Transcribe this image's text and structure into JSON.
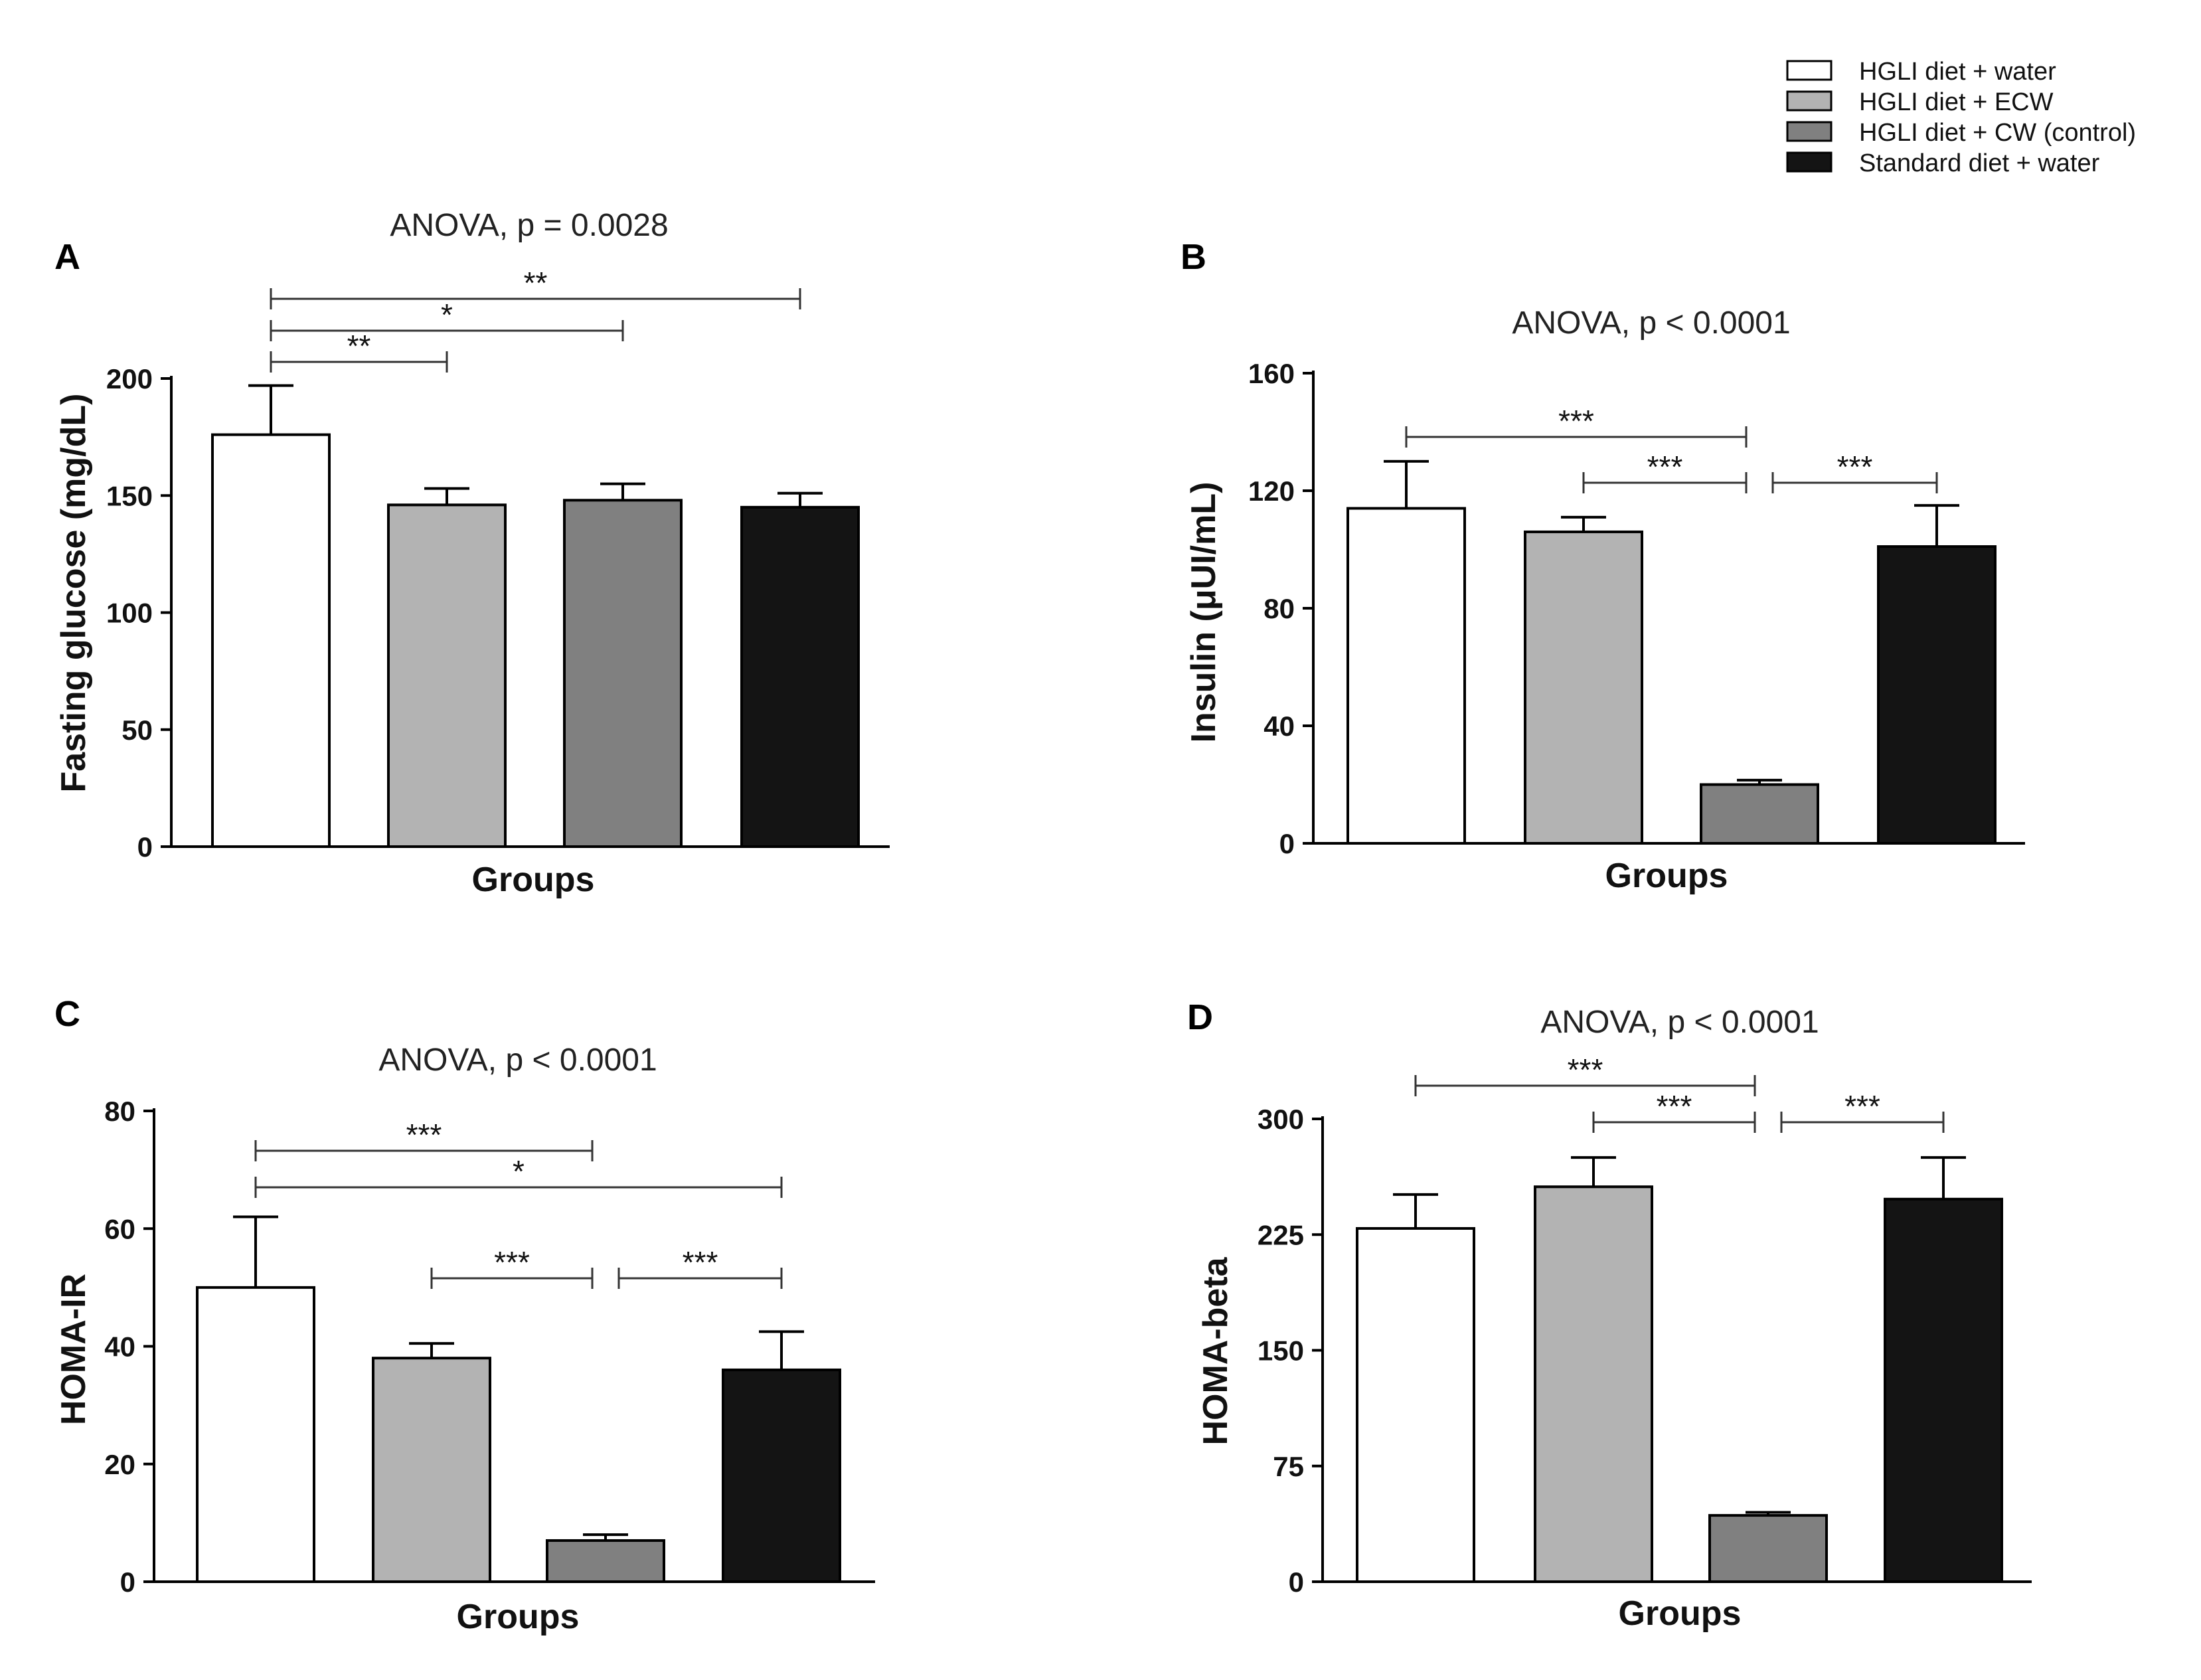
{
  "legend": {
    "items": [
      {
        "label": "HGLI diet + water",
        "color": "#ffffff"
      },
      {
        "label": "HGLI diet + ECW",
        "color": "#b3b3b3"
      },
      {
        "label": "HGLI diet + CW (control)",
        "color": "#808080"
      },
      {
        "label": "Standard diet + water",
        "color": "#141414"
      }
    ]
  },
  "chart_data": [
    {
      "panel": "A",
      "type": "bar",
      "title": "ANOVA, p = 0.0028",
      "xlabel": "Groups",
      "ylabel": "Fasting glucose (mg/dL)",
      "ylim": [
        0,
        200
      ],
      "yticks": [
        0,
        50,
        100,
        150,
        200
      ],
      "tick_labels": [
        "0",
        "50",
        "100",
        "150",
        "200"
      ],
      "categories": [
        "HGLI diet + water",
        "HGLI diet + ECW",
        "HGLI diet + CW (control)",
        "Standard diet + water"
      ],
      "values": [
        176,
        146,
        148,
        145
      ],
      "errors": [
        21,
        7,
        7,
        6
      ],
      "significance": [
        {
          "from": 0,
          "to": 3,
          "label": "**"
        },
        {
          "from": 0,
          "to": 2,
          "label": "*"
        },
        {
          "from": 0,
          "to": 1,
          "label": "**"
        }
      ]
    },
    {
      "panel": "B",
      "type": "bar",
      "title": "ANOVA, p < 0.0001",
      "xlabel": "Groups",
      "ylabel": "Insulin (μUI/mL)",
      "ylim": [
        0,
        160
      ],
      "yticks": [
        0,
        40,
        80,
        120,
        160
      ],
      "tick_labels": [
        "0",
        "40",
        "80",
        "120",
        "160"
      ],
      "categories": [
        "HGLI diet + water",
        "HGLI diet + ECW",
        "HGLI diet + CW (control)",
        "Standard diet + water"
      ],
      "values": [
        114,
        106,
        20,
        101
      ],
      "errors": [
        16,
        5,
        1.5,
        14
      ],
      "significance": [
        {
          "from": 0,
          "to": 2,
          "label": "***"
        },
        {
          "from": 1,
          "to": 2,
          "label": "***"
        },
        {
          "from": 2,
          "to": 3,
          "label": "***"
        }
      ]
    },
    {
      "panel": "C",
      "type": "bar",
      "title": "ANOVA, p < 0.0001",
      "xlabel": "Groups",
      "ylabel": "HOMA-IR",
      "ylim": [
        0,
        80
      ],
      "yticks": [
        0,
        20,
        40,
        60,
        80
      ],
      "tick_labels": [
        "0",
        "20",
        "40",
        "60",
        "80"
      ],
      "categories": [
        "HGLI diet + water",
        "HGLI diet + ECW",
        "HGLI diet + CW (control)",
        "Standard diet + water"
      ],
      "values": [
        50,
        38,
        7,
        36
      ],
      "errors": [
        12,
        2.5,
        1,
        6.5
      ],
      "significance": [
        {
          "from": 0,
          "to": 2,
          "label": "***"
        },
        {
          "from": 0,
          "to": 3,
          "label": "*"
        },
        {
          "from": 1,
          "to": 2,
          "label": "***"
        },
        {
          "from": 2,
          "to": 3,
          "label": "***"
        }
      ]
    },
    {
      "panel": "D",
      "type": "bar",
      "title": "ANOVA, p < 0.0001",
      "xlabel": "Groups",
      "ylabel": "HOMA-beta",
      "ylim": [
        0,
        300
      ],
      "yticks": [
        0,
        75,
        150,
        225,
        300
      ],
      "tick_labels": [
        "0",
        "75",
        "150",
        "225",
        "300"
      ],
      "categories": [
        "HGLI diet + water",
        "HGLI diet + ECW",
        "HGLI diet + CW (control)",
        "Standard diet + water"
      ],
      "values": [
        229,
        256,
        43,
        248
      ],
      "errors": [
        22,
        19,
        2,
        27
      ],
      "significance": [
        {
          "from": 0,
          "to": 2,
          "label": "***"
        },
        {
          "from": 1,
          "to": 2,
          "label": "***"
        },
        {
          "from": 2,
          "to": 3,
          "label": "***"
        }
      ]
    }
  ]
}
